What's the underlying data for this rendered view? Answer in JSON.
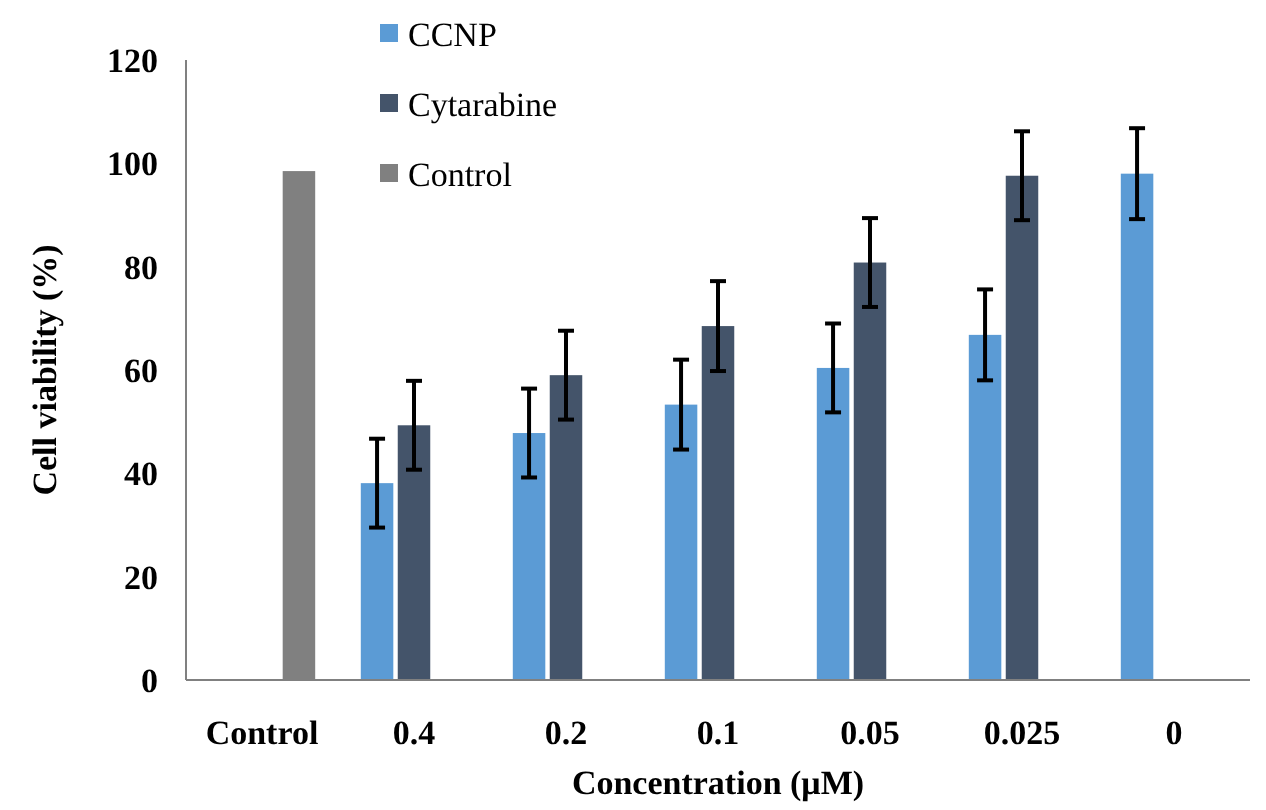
{
  "chart_data": {
    "type": "bar",
    "xlabel": "Concentration (μM)",
    "ylabel": "Cell viability (%)",
    "categories": [
      "Control",
      "0.4",
      "0.2",
      "0.1",
      "0.05",
      "0.025",
      "0"
    ],
    "series": [
      {
        "name": "CCNP",
        "color": "#5b9bd5",
        "values": [
          null,
          38.1,
          47.8,
          53.3,
          60.4,
          66.8,
          98
        ],
        "errors": [
          null,
          8.6,
          8.6,
          8.7,
          8.6,
          8.8,
          8.8
        ]
      },
      {
        "name": "Cytarabine",
        "color": "#44546a",
        "values": [
          null,
          49.3,
          59,
          68.5,
          80.8,
          97.6,
          null
        ],
        "errors": [
          null,
          8.6,
          8.6,
          8.7,
          8.6,
          8.6,
          null
        ]
      },
      {
        "name": "Control",
        "color": "#808080",
        "values": [
          98.5,
          null,
          null,
          null,
          null,
          null,
          null
        ]
      }
    ],
    "ylim": [
      0,
      120
    ],
    "yticks": [
      0,
      20,
      40,
      60,
      80,
      100,
      120
    ],
    "grid": false,
    "legend": "top left"
  }
}
